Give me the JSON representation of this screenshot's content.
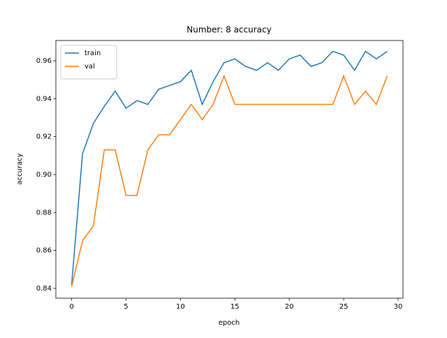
{
  "chart_data": {
    "type": "line",
    "title": "Number: 8 accuracy",
    "x_label": "epoch",
    "y_label": "accuracy",
    "x": [
      0,
      1,
      2,
      3,
      4,
      5,
      6,
      7,
      8,
      9,
      10,
      11,
      12,
      13,
      14,
      15,
      16,
      17,
      18,
      19,
      20,
      21,
      22,
      23,
      24,
      25,
      26,
      27,
      28,
      29
    ],
    "series": [
      {
        "name": "train",
        "color": "#1f77b4",
        "values": [
          0.842,
          0.911,
          0.927,
          0.936,
          0.944,
          0.935,
          0.939,
          0.937,
          0.945,
          0.947,
          0.949,
          0.955,
          0.937,
          0.949,
          0.959,
          0.961,
          0.957,
          0.955,
          0.959,
          0.955,
          0.961,
          0.963,
          0.957,
          0.959,
          0.965,
          0.963,
          0.955,
          0.965,
          0.961,
          0.965
        ]
      },
      {
        "name": "val",
        "color": "#ff7f0e",
        "values": [
          0.841,
          0.865,
          0.873,
          0.913,
          0.913,
          0.889,
          0.889,
          0.913,
          0.921,
          0.921,
          0.929,
          0.937,
          0.929,
          0.937,
          0.952,
          0.937,
          0.937,
          0.937,
          0.937,
          0.937,
          0.937,
          0.937,
          0.937,
          0.937,
          0.937,
          0.952,
          0.937,
          0.944,
          0.937,
          0.952
        ]
      }
    ],
    "xlim": [
      -1.45,
      30.45
    ],
    "ylim": [
      0.8348,
      0.9707
    ],
    "xticks": [
      0,
      5,
      10,
      15,
      20,
      25,
      30
    ],
    "yticks": [
      0.84,
      0.86,
      0.88,
      {
        "value": 0.9,
        "label": "0.90"
      },
      0.92,
      0.94,
      0.96
    ],
    "legend": "upper left"
  }
}
